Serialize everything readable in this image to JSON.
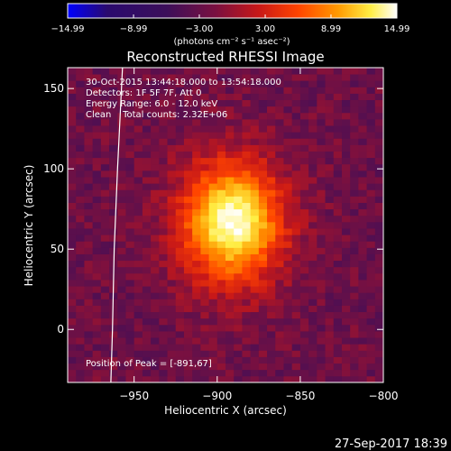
{
  "chart_data": {
    "type": "heatmap",
    "title": "Reconstructed RHESSI Image",
    "xlabel": "Heliocentric X (arcsec)",
    "ylabel": "Heliocentric Y (arcsec)",
    "xlim": [
      -990,
      -800
    ],
    "ylim": [
      -33,
      163
    ],
    "x_ticks": [
      -950,
      -900,
      -850,
      -800
    ],
    "y_ticks": [
      0,
      50,
      100,
      150
    ],
    "x_tick_labels": [
      "−950",
      "−900",
      "−850",
      "−800"
    ],
    "y_tick_labels": [
      "0",
      "50",
      "100",
      "150"
    ],
    "grid": false,
    "colorbar": {
      "range": [
        -14.99,
        14.99
      ],
      "tick_values": [
        -14.99,
        -8.99,
        -3.0,
        3.0,
        8.99,
        14.99
      ],
      "tick_labels": [
        "−14.99",
        "−8.99",
        "−3.00",
        "3.00",
        "8.99",
        "14.99"
      ],
      "unit_label": "(photons cm⁻² s⁻¹ asec⁻²)",
      "colormap": [
        "#0000ff",
        "#2a0a6e",
        "#3c0f5a",
        "#7a1040",
        "#c81818",
        "#ff4400",
        "#ff9900",
        "#ffee44",
        "#ffffff"
      ]
    },
    "source": {
      "peak_x": -891,
      "peak_y": 67,
      "peak_value": 14.99,
      "sigma_x": 22,
      "sigma_y": 27,
      "background": -2.5,
      "noise": 2.0
    },
    "limb_curve": [
      [
        -957,
        163
      ],
      [
        -960,
        100
      ],
      [
        -962,
        50
      ],
      [
        -963,
        0
      ],
      [
        -964,
        -33
      ]
    ]
  },
  "annotations": {
    "time_range": "30-Oct-2015 13:44:18.000 to 13:54:18.000",
    "detectors": "Detectors: 1F 5F 7F, Att 0",
    "energy": "Energy Range: 6.0 - 12.0 keV",
    "method": "Clean    Total counts: 2.32E+06",
    "peak": "Position of Peak = [-891,67]"
  },
  "footer": {
    "date": "27-Sep-2017 18:39"
  }
}
